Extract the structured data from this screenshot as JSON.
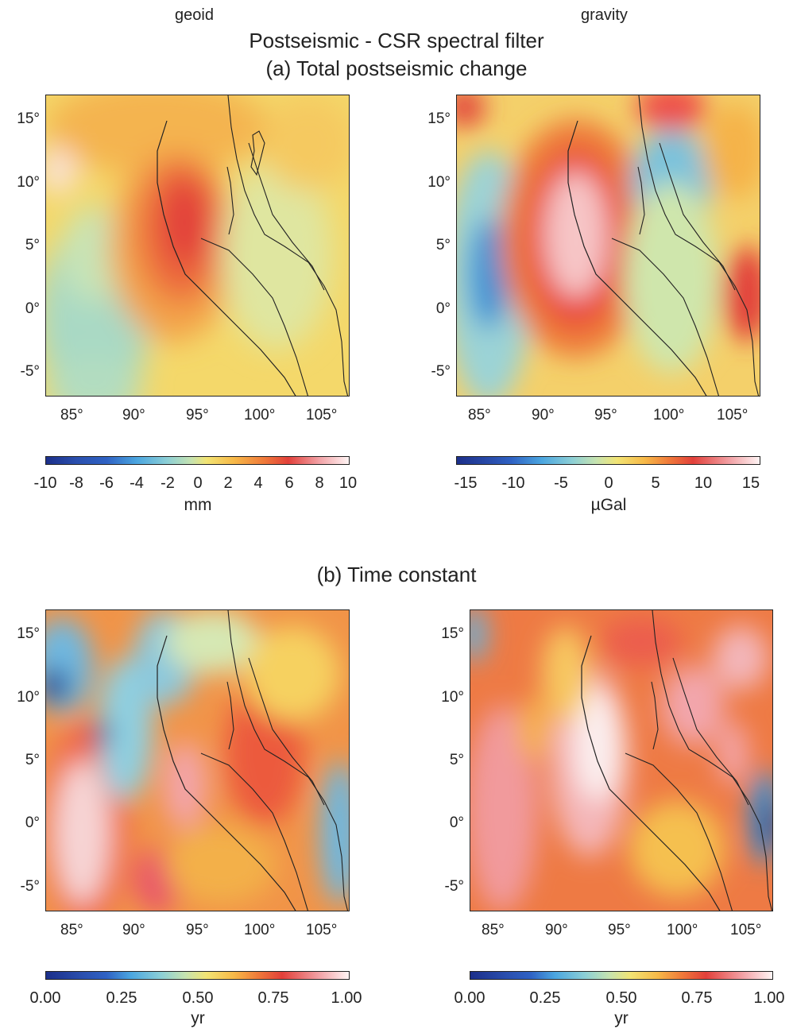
{
  "column_headers": {
    "left": "geoid",
    "right": "gravity"
  },
  "title_main": "Postseismic - CSR spectral filter",
  "section_a_title": "(a) Total postseismic change",
  "section_b_title": "(b) Time constant",
  "axes": {
    "lat_ticks": [
      "15°",
      "10°",
      "5°",
      "0°",
      "-5°"
    ],
    "lon_ticks": [
      "85°",
      "90°",
      "95°",
      "100°",
      "105°"
    ],
    "lon_range": [
      83,
      107
    ],
    "lat_range": [
      -7,
      17
    ]
  },
  "colorbars": {
    "geoid_change": {
      "ticks": [
        "-10",
        "-8",
        "-6",
        "-4",
        "-2",
        "0",
        "2",
        "4",
        "6",
        "8",
        "10"
      ],
      "unit": "mm",
      "range": [
        -10,
        10
      ]
    },
    "gravity_change": {
      "ticks": [
        "-15",
        "-10",
        "-5",
        "0",
        "5",
        "10",
        "15"
      ],
      "unit": "µGal",
      "range": [
        -16,
        16
      ]
    },
    "geoid_time": {
      "ticks": [
        "0.00",
        "0.25",
        "0.50",
        "0.75",
        "1.00"
      ],
      "unit": "yr",
      "range": [
        0,
        1
      ]
    },
    "gravity_time": {
      "ticks": [
        "0.00",
        "0.25",
        "0.50",
        "0.75",
        "1.00"
      ],
      "unit": "yr",
      "range": [
        0,
        1
      ]
    }
  },
  "colors": {
    "palette": [
      "#1c2f8a",
      "#2f62c4",
      "#4ba6e0",
      "#8ccfd6",
      "#c6e3b0",
      "#f2e474",
      "#f7b948",
      "#f07a3a",
      "#e2403a",
      "#f2a0a4",
      "#fff4f4"
    ]
  }
}
